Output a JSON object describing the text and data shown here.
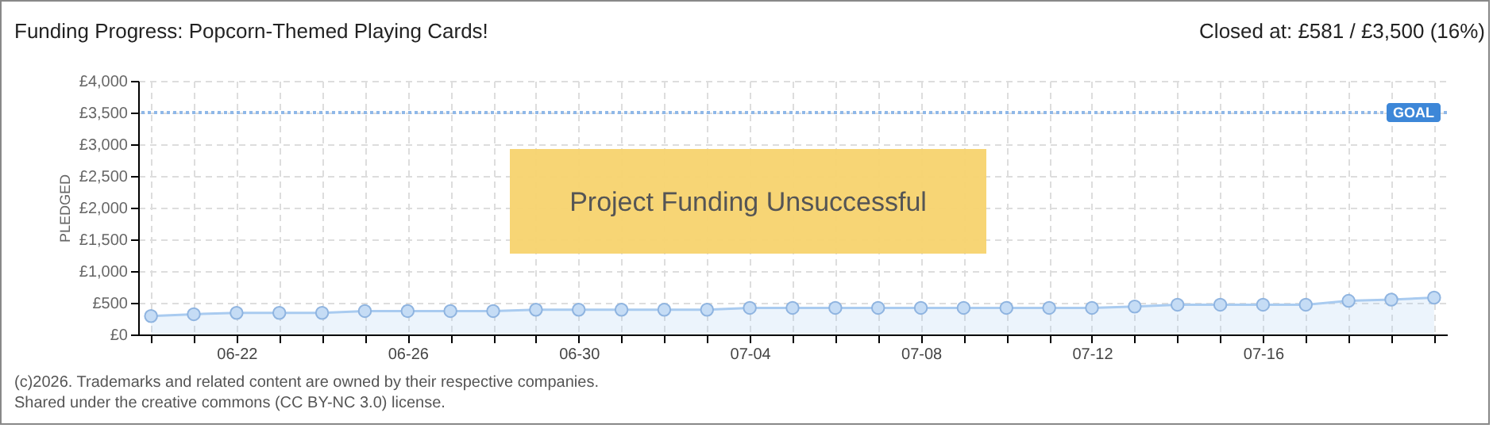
{
  "chart_data": {
    "type": "area",
    "title": "Funding Progress: Popcorn-Themed Playing Cards!",
    "subtitle": "Closed at:  £581 / £3,500 (16%)",
    "ylabel": "PLEDGED",
    "categories": [
      null,
      null,
      "06-22",
      null,
      null,
      null,
      "06-26",
      null,
      null,
      null,
      "06-30",
      null,
      null,
      null,
      "07-04",
      null,
      null,
      null,
      "07-08",
      null,
      null,
      null,
      "07-12",
      null,
      null,
      null,
      "07-16",
      null,
      null,
      null,
      null
    ],
    "series": [
      {
        "color": "#a9cbf0",
        "values": [
          290,
          320,
          340,
          340,
          340,
          370,
          370,
          370,
          370,
          390,
          390,
          390,
          390,
          390,
          420,
          420,
          420,
          420,
          420,
          420,
          420,
          420,
          420,
          440,
          470,
          470,
          470,
          470,
          530,
          550,
          581
        ]
      }
    ],
    "ylim": [
      0,
      4000
    ],
    "yticks": [
      {
        "value": 0,
        "label": "£0"
      },
      {
        "value": 500,
        "label": "£500"
      },
      {
        "value": 1000,
        "label": "£1,000"
      },
      {
        "value": 1500,
        "label": "£1,500"
      },
      {
        "value": 2000,
        "label": "£2,000"
      },
      {
        "value": 2500,
        "label": "£2,500"
      },
      {
        "value": 3000,
        "label": "£3,000"
      },
      {
        "value": 3500,
        "label": "£3,500"
      },
      {
        "value": 4000,
        "label": "£4,000"
      }
    ],
    "grid": true,
    "marker": "circle",
    "ref_lines": [
      {
        "axis": "y",
        "value": 3500,
        "label": "GOAL",
        "color": "#8fb8e8",
        "line_style": "dotted"
      }
    ],
    "annotations": [
      "Project Funding Unsuccessful",
      "(c)2026. Trademarks and related content are owned by their respective companies.",
      "Shared under the creative commons (CC BY-NC 3.0) license."
    ]
  }
}
